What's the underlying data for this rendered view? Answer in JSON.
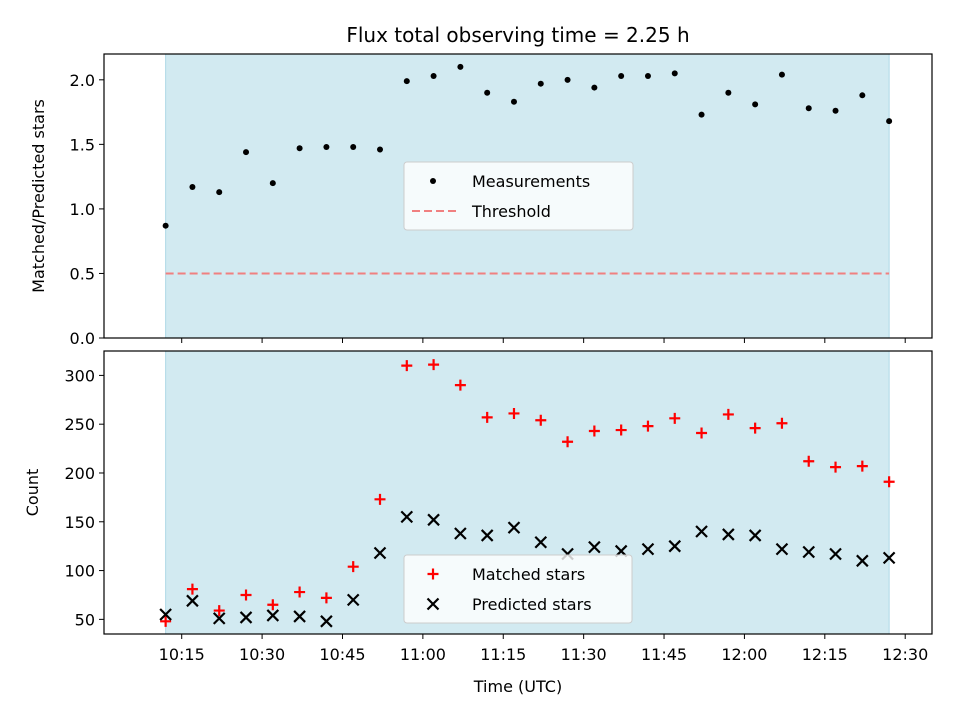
{
  "chart_data": [
    {
      "type": "scatter",
      "title": "Flux total observing time = 2.25 h",
      "ylabel": "Matched/Predicted stars",
      "xlabel": "",
      "ylim": [
        0,
        2.2
      ],
      "yticks": [
        "0.0",
        "0.5",
        "1.0",
        "1.5",
        "2.0"
      ],
      "shaded_interval": [
        "10:12",
        "12:27"
      ],
      "shade_color": "#add8e6",
      "legend_position": "center",
      "series": [
        {
          "name": "Measurements",
          "marker": "dot",
          "color": "#000000",
          "x": [
            "10:12",
            "10:17",
            "10:22",
            "10:27",
            "10:32",
            "10:37",
            "10:42",
            "10:47",
            "10:52",
            "10:57",
            "11:02",
            "11:07",
            "11:12",
            "11:17",
            "11:22",
            "11:27",
            "11:32",
            "11:37",
            "11:42",
            "11:47",
            "11:52",
            "11:57",
            "12:02",
            "12:07",
            "12:12",
            "12:17",
            "12:22",
            "12:27"
          ],
          "y": [
            0.87,
            1.17,
            1.13,
            1.44,
            1.2,
            1.47,
            1.48,
            1.48,
            1.46,
            1.99,
            2.03,
            2.1,
            1.9,
            1.83,
            1.97,
            2.0,
            1.94,
            2.03,
            2.03,
            2.05,
            1.73,
            1.9,
            1.81,
            2.04,
            1.78,
            1.76,
            1.88,
            1.68
          ]
        },
        {
          "name": "Threshold",
          "style": "dashed",
          "color": "#f08080",
          "x": [
            "10:12",
            "12:27"
          ],
          "y": [
            0.5,
            0.5
          ]
        }
      ]
    },
    {
      "type": "scatter",
      "title": "",
      "ylabel": "Count",
      "xlabel": "Time (UTC)",
      "ylim": [
        35,
        325
      ],
      "yticks": [
        "50",
        "100",
        "150",
        "200",
        "250",
        "300"
      ],
      "xticks": [
        "10:15",
        "10:30",
        "10:45",
        "11:00",
        "11:15",
        "11:30",
        "11:45",
        "12:00",
        "12:15",
        "12:30"
      ],
      "shaded_interval": [
        "10:12",
        "12:27"
      ],
      "shade_color": "#add8e6",
      "legend_position": "lower center",
      "series": [
        {
          "name": "Matched stars",
          "marker": "plus",
          "color": "#ff0000",
          "x": [
            "10:12",
            "10:17",
            "10:22",
            "10:27",
            "10:32",
            "10:37",
            "10:42",
            "10:47",
            "10:52",
            "10:57",
            "11:02",
            "11:07",
            "11:12",
            "11:17",
            "11:22",
            "11:27",
            "11:32",
            "11:37",
            "11:42",
            "11:47",
            "11:52",
            "11:57",
            "12:02",
            "12:07",
            "12:12",
            "12:17",
            "12:22",
            "12:27"
          ],
          "y": [
            48,
            81,
            59,
            75,
            65,
            78,
            72,
            104,
            173,
            310,
            311,
            290,
            257,
            261,
            254,
            232,
            243,
            244,
            248,
            256,
            241,
            260,
            246,
            251,
            212,
            206,
            207,
            191
          ]
        },
        {
          "name": "Predicted stars",
          "marker": "x",
          "color": "#000000",
          "x": [
            "10:12",
            "10:17",
            "10:22",
            "10:27",
            "10:32",
            "10:37",
            "10:42",
            "10:47",
            "10:52",
            "10:57",
            "11:02",
            "11:07",
            "11:12",
            "11:17",
            "11:22",
            "11:27",
            "11:32",
            "11:37",
            "11:42",
            "11:47",
            "11:52",
            "11:57",
            "12:02",
            "12:07",
            "12:12",
            "12:17",
            "12:22",
            "12:27"
          ],
          "y": [
            55,
            69,
            51,
            52,
            54,
            53,
            48,
            70,
            118,
            155,
            152,
            138,
            136,
            144,
            129,
            117,
            124,
            120,
            122,
            125,
            140,
            137,
            136,
            122,
            119,
            117,
            110,
            113
          ]
        }
      ]
    }
  ]
}
